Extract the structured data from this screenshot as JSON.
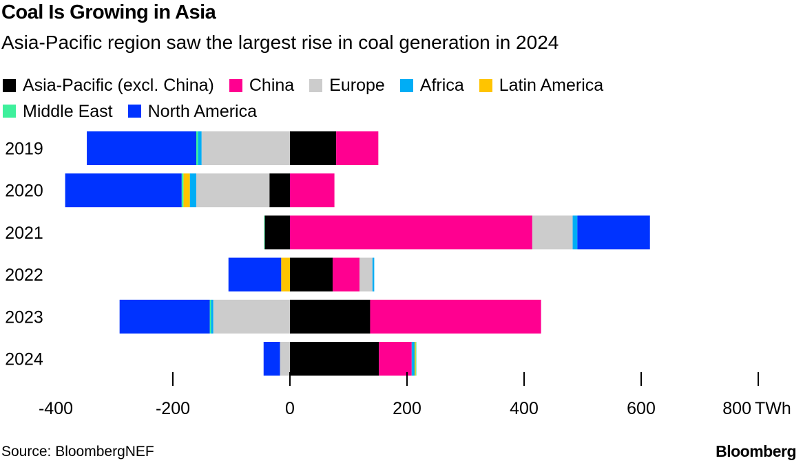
{
  "header": {
    "title": "Coal Is Growing in Asia",
    "subtitle": "Asia-Pacific region saw the largest rise in coal generation in 2024"
  },
  "footer": {
    "source": "Source: BloombergNEF",
    "logo": "Bloomberg"
  },
  "chart_data": {
    "type": "bar",
    "orientation": "horizontal",
    "stacked": true,
    "title": "Coal Is Growing in Asia",
    "subtitle": "Asia-Pacific region saw the largest rise in coal generation in 2024",
    "categories": [
      "2019",
      "2020",
      "2021",
      "2022",
      "2023",
      "2024"
    ],
    "unit": "TWh",
    "xlim": [
      -400,
      800
    ],
    "xticks": [
      -400,
      -200,
      0,
      200,
      400,
      600,
      800
    ],
    "xtick_labels": [
      "-400",
      "-200",
      "0",
      "200",
      "400",
      "600",
      "800"
    ],
    "legend_position": "top",
    "grid": false,
    "series": [
      {
        "name": "Asia-Pacific (excl. China)",
        "color": "#000000",
        "values": [
          79,
          -35,
          -43,
          73,
          137,
          152
        ]
      },
      {
        "name": "China",
        "color": "#ff0090",
        "values": [
          72,
          76,
          414,
          46,
          292,
          56
        ]
      },
      {
        "name": "Europe",
        "color": "#cccccc",
        "values": [
          -151,
          -125,
          69,
          22,
          -131,
          -17
        ]
      },
      {
        "name": "Africa",
        "color": "#00adf5",
        "values": [
          -6,
          -11,
          8,
          3,
          -4,
          5
        ]
      },
      {
        "name": "Latin America",
        "color": "#ffc400",
        "values": [
          0,
          -11,
          0,
          -15,
          0,
          2
        ]
      },
      {
        "name": "Middle East",
        "color": "#3ef09c",
        "values": [
          -3,
          -3,
          -1,
          0,
          -2,
          1
        ]
      },
      {
        "name": "North America",
        "color": "#0033ff",
        "values": [
          -187,
          -199,
          124,
          -90,
          -154,
          -28
        ]
      }
    ]
  }
}
